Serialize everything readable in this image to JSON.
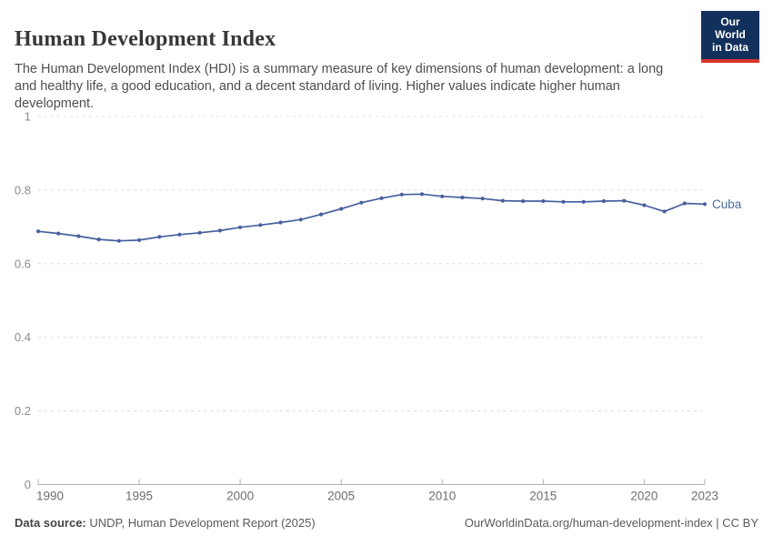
{
  "header": {
    "title": "Human Development Index",
    "subtitle": "The Human Development Index (HDI) is a summary measure of key dimensions of human development: a long and healthy life, a good education, and a decent standard of living. Higher values indicate higher human development.",
    "logo": {
      "line1": "Our World",
      "line2": "in Data"
    }
  },
  "chart_data": {
    "type": "line",
    "title": "Human Development Index",
    "entity": "Cuba",
    "x": [
      1990,
      1991,
      1992,
      1993,
      1994,
      1995,
      1996,
      1997,
      1998,
      1999,
      2000,
      2001,
      2002,
      2003,
      2004,
      2005,
      2006,
      2007,
      2008,
      2009,
      2010,
      2011,
      2012,
      2013,
      2014,
      2015,
      2016,
      2017,
      2018,
      2019,
      2020,
      2021,
      2022,
      2023
    ],
    "series": [
      {
        "name": "Cuba",
        "values": [
          0.688,
          0.682,
          0.675,
          0.666,
          0.662,
          0.664,
          0.673,
          0.679,
          0.684,
          0.69,
          0.699,
          0.705,
          0.712,
          0.72,
          0.734,
          0.749,
          0.766,
          0.778,
          0.788,
          0.789,
          0.783,
          0.78,
          0.777,
          0.771,
          0.77,
          0.77,
          0.768,
          0.768,
          0.77,
          0.771,
          0.759,
          0.742,
          0.764,
          0.762
        ]
      }
    ],
    "xlim": [
      1990,
      2023
    ],
    "ylim": [
      0,
      1
    ],
    "yticks": [
      0,
      0.2,
      0.4,
      0.6,
      0.8,
      1
    ],
    "ytick_labels": [
      "0",
      "0.2",
      "0.4",
      "0.6",
      "0.8",
      "1"
    ],
    "xticks": [
      1990,
      1995,
      2000,
      2005,
      2010,
      2015,
      2020,
      2023
    ],
    "grid": "dashed-horizontal",
    "legend_position": "end-of-line-label",
    "end_label": "Cuba"
  },
  "footer": {
    "datasource_label": "Data source:",
    "datasource_text": " UNDP, Human Development Report (2025)",
    "credit": "OurWorldinData.org/human-development-index | CC BY"
  },
  "colors": {
    "line": "#46609e",
    "end_label": "#4c6a9c",
    "gridline": "#dcdcdc",
    "axis_line": "#b0b0b0",
    "y_tick_text": "#8b8b8b",
    "x_tick_text": "#6e6e6e",
    "logo_bg": "#12305c",
    "logo_underline": "#d8352c"
  }
}
